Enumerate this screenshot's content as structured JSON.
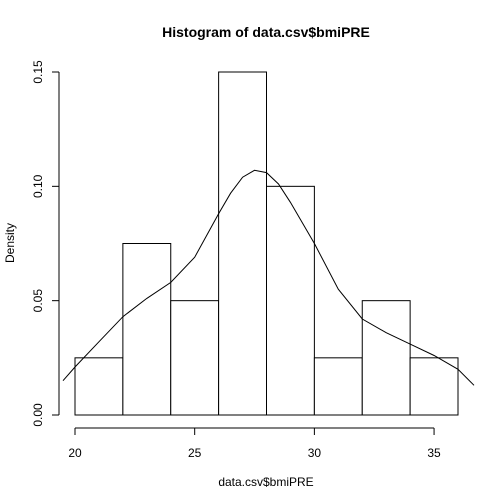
{
  "chart_data": {
    "type": "bar",
    "subtype": "histogram",
    "title": "Histogram of data.csv$bmiPRE",
    "xlabel": "data.csv$bmiPRE",
    "ylabel": "Density",
    "xlim": [
      20,
      36
    ],
    "ylim": [
      0,
      0.15
    ],
    "x_ticks": [
      20,
      25,
      30,
      35
    ],
    "y_ticks": [
      0.0,
      0.05,
      0.1,
      0.15
    ],
    "x_tick_labels": [
      "20",
      "25",
      "30",
      "35"
    ],
    "y_tick_labels": [
      "0.00",
      "0.05",
      "0.10",
      "0.15"
    ],
    "bins": [
      {
        "from": 20,
        "to": 22,
        "density": 0.025
      },
      {
        "from": 22,
        "to": 24,
        "density": 0.075
      },
      {
        "from": 24,
        "to": 26,
        "density": 0.05
      },
      {
        "from": 26,
        "to": 28,
        "density": 0.15
      },
      {
        "from": 28,
        "to": 30,
        "density": 0.1
      },
      {
        "from": 30,
        "to": 32,
        "density": 0.025
      },
      {
        "from": 32,
        "to": 34,
        "density": 0.05
      },
      {
        "from": 34,
        "to": 36,
        "density": 0.025
      }
    ],
    "density_curve": {
      "x": [
        19.5,
        20,
        21,
        22,
        23,
        24,
        25,
        26,
        26.5,
        27,
        27.5,
        28,
        28.5,
        29,
        30,
        31,
        32,
        33,
        34,
        35,
        36,
        37
      ],
      "y": [
        0.015,
        0.021,
        0.032,
        0.043,
        0.051,
        0.058,
        0.069,
        0.088,
        0.097,
        0.104,
        0.107,
        0.106,
        0.101,
        0.093,
        0.075,
        0.055,
        0.042,
        0.036,
        0.031,
        0.026,
        0.02,
        0.013
      ]
    },
    "grid": false,
    "legend": "none"
  }
}
